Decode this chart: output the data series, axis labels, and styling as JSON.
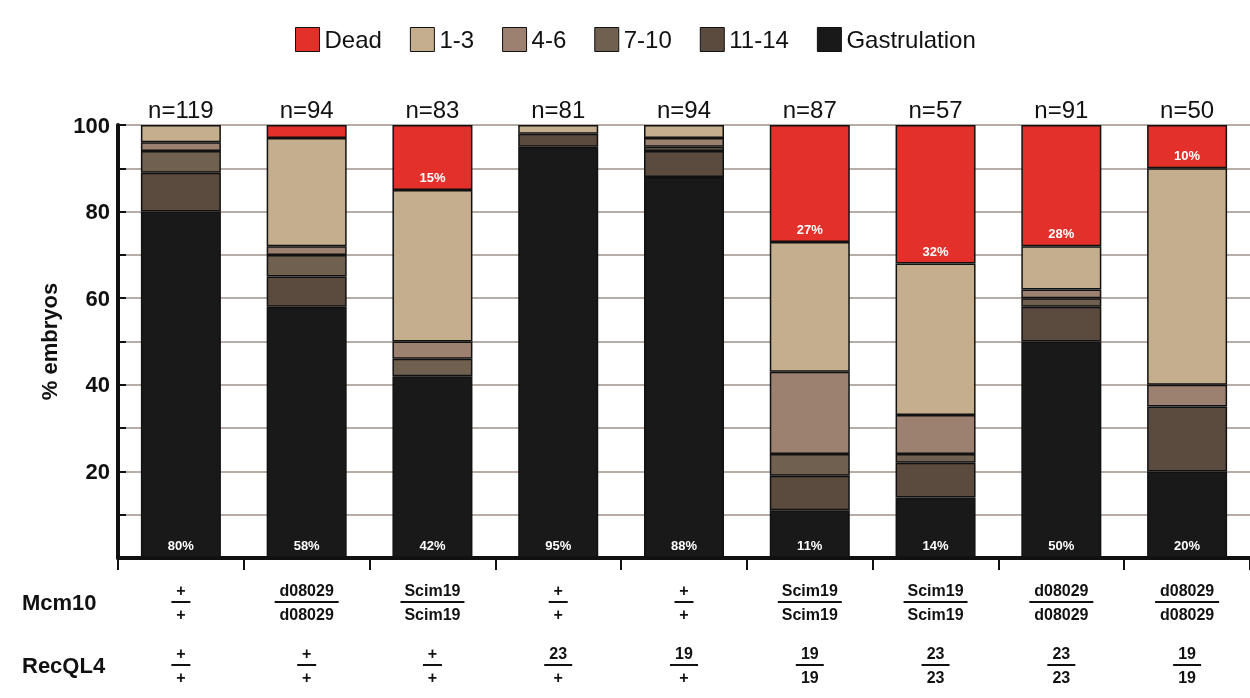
{
  "chart_data": {
    "type": "bar",
    "stacked": true,
    "ylabel": "% embryos",
    "categories": [
      null,
      null,
      null,
      null,
      null,
      null,
      null,
      null,
      null
    ],
    "series": [
      {
        "name": "Gastrulation",
        "color": "#191919",
        "values": [
          80,
          58,
          42,
          95,
          88,
          11,
          14,
          50,
          20
        ],
        "value_labels": [
          "80%",
          "58%",
          "42%",
          "95%",
          "88%",
          "11%",
          "14%",
          "50%",
          "20%"
        ]
      },
      {
        "name": "11-14",
        "color": "#5b4a3e",
        "values": [
          9,
          7,
          0,
          3,
          6,
          8,
          8,
          8,
          15
        ]
      },
      {
        "name": "7-10",
        "color": "#6f6050",
        "values": [
          5,
          5,
          4,
          0,
          1,
          5,
          2,
          2,
          0
        ]
      },
      {
        "name": "4-6",
        "color": "#9c8170",
        "values": [
          2,
          2,
          4,
          0,
          2,
          19,
          9,
          2,
          5
        ]
      },
      {
        "name": "1-3",
        "color": "#c5ae8e",
        "values": [
          4,
          25,
          35,
          2,
          3,
          30,
          35,
          10,
          50
        ]
      },
      {
        "name": "Dead",
        "color": "#e3302b",
        "values": [
          0,
          3,
          15,
          0,
          0,
          27,
          32,
          28,
          10
        ],
        "value_labels": [
          null,
          null,
          "15%",
          null,
          null,
          "27%",
          "32%",
          "28%",
          "10%"
        ]
      }
    ],
    "ylim": [
      0,
      100
    ],
    "yticks": [
      {
        "value": 10,
        "label": null
      },
      20,
      {
        "value": 30,
        "label": null
      },
      40,
      {
        "value": 50,
        "label": null
      },
      60,
      {
        "value": 70,
        "label": null
      },
      80,
      {
        "value": 90,
        "label": null
      },
      100
    ],
    "grid": "y",
    "legend": "top",
    "annotations": [
      "n=119",
      "n=94",
      "n=83",
      "n=81",
      "n=94",
      "n=87",
      "n=57",
      "n=91",
      "n=50",
      "Mcm10",
      "+",
      "+",
      "d08029",
      "d08029",
      "Scim19",
      "Scim19",
      "+",
      "+",
      "+",
      "+",
      "Scim19",
      "Scim19",
      "Scim19",
      "Scim19",
      "d08029",
      "d08029",
      "d08029",
      "d08029",
      "RecQL4",
      "+",
      "+",
      "+",
      "+",
      "+",
      "+",
      "23",
      "+",
      "19",
      "+",
      "19",
      "19",
      "23",
      "23",
      "23",
      "23",
      "19",
      "19"
    ]
  }
}
